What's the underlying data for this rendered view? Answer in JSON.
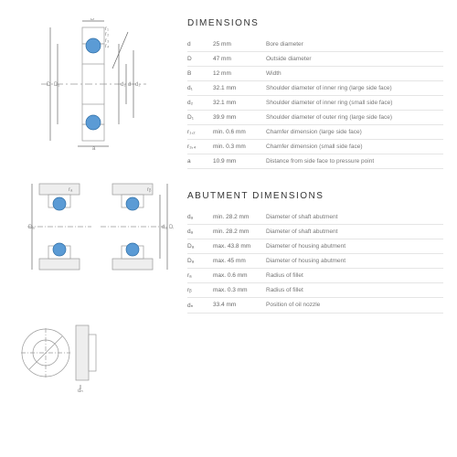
{
  "sections": {
    "dimensions": {
      "title": "DIMENSIONS",
      "rows": [
        {
          "sym": "d",
          "val": "25 mm",
          "desc": "Bore diameter"
        },
        {
          "sym": "D",
          "val": "47 mm",
          "desc": "Outside diameter"
        },
        {
          "sym": "B",
          "val": "12 mm",
          "desc": "Width"
        },
        {
          "sym": "d₁",
          "val": "32.1 mm",
          "desc": "Shoulder diameter of inner ring (large side face)"
        },
        {
          "sym": "d₂",
          "val": "32.1 mm",
          "desc": "Shoulder diameter of inner ring (small side face)"
        },
        {
          "sym": "D₁",
          "val": "39.9 mm",
          "desc": "Shoulder diameter of outer ring (large side face)"
        },
        {
          "sym": "r₁,₂",
          "val": "min. 0.6 mm",
          "desc": "Chamfer dimension (large side face)"
        },
        {
          "sym": "r₃,₄",
          "val": "min. 0.3 mm",
          "desc": "Chamfer dimension (small side face)"
        },
        {
          "sym": "a",
          "val": "10.9 mm",
          "desc": "Distance from side face to pressure point"
        }
      ]
    },
    "abutment": {
      "title": "ABUTMENT DIMENSIONS",
      "rows": [
        {
          "sym": "dₐ",
          "val": "min. 28.2 mm",
          "desc": "Diameter of shaft abutment"
        },
        {
          "sym": "dₐ",
          "val": "min. 28.2 mm",
          "desc": "Diameter of shaft abutment"
        },
        {
          "sym": "Dₐ",
          "val": "max. 43.8 mm",
          "desc": "Diameter of housing abutment"
        },
        {
          "sym": "Dₐ",
          "val": "max. 45 mm",
          "desc": "Diameter of housing abutment"
        },
        {
          "sym": "rₐ",
          "val": "max. 0.6 mm",
          "desc": "Radius of fillet"
        },
        {
          "sym": "rᵦ",
          "val": "max. 0.3 mm",
          "desc": "Radius of fillet"
        },
        {
          "sym": "dₙ",
          "val": "33.4 mm",
          "desc": "Position of oil nozzle"
        }
      ]
    }
  },
  "colors": {
    "line": "#999",
    "fill": "#fff",
    "ball": "#5b9bd5",
    "label": "#888",
    "dim": "#666"
  }
}
